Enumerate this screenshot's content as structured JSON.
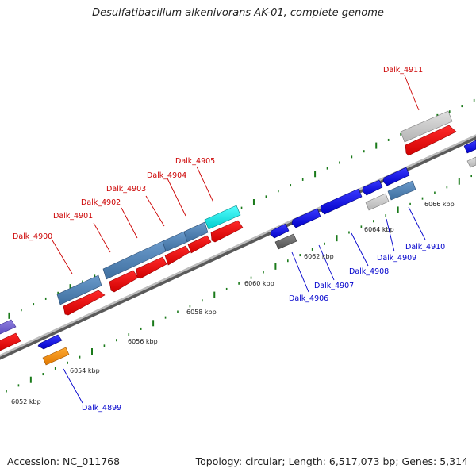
{
  "title": "Desulfatibacillum alkenivorans AK-01, complete genome",
  "footer": {
    "accession": "Accession: NC_011768",
    "summary": "Topology: circular; Length: 6,517,073 bp; Genes: 5,314"
  },
  "scale": {
    "unit": "kbp",
    "tick_labels": [
      "6052 kbp",
      "6054 kbp",
      "6056 kbp",
      "6058 kbp",
      "6060 kbp",
      "6062 kbp",
      "6064 kbp",
      "6066 kbp"
    ]
  },
  "colors": {
    "forward_label": "#cc0000",
    "reverse_label": "#0000cc",
    "backbone": "#9a9a9a",
    "tick": "#1a7a1a"
  },
  "genes": [
    {
      "name": "Dalk_4899",
      "strand": "reverse"
    },
    {
      "name": "Dalk_4900",
      "strand": "forward"
    },
    {
      "name": "Dalk_4901",
      "strand": "forward"
    },
    {
      "name": "Dalk_4902",
      "strand": "forward"
    },
    {
      "name": "Dalk_4903",
      "strand": "forward"
    },
    {
      "name": "Dalk_4904",
      "strand": "forward"
    },
    {
      "name": "Dalk_4905",
      "strand": "forward"
    },
    {
      "name": "Dalk_4906",
      "strand": "reverse"
    },
    {
      "name": "Dalk_4907",
      "strand": "reverse"
    },
    {
      "name": "Dalk_4908",
      "strand": "reverse"
    },
    {
      "name": "Dalk_4909",
      "strand": "reverse"
    },
    {
      "name": "Dalk_4910",
      "strand": "reverse"
    },
    {
      "name": "Dalk_4911",
      "strand": "forward"
    }
  ]
}
